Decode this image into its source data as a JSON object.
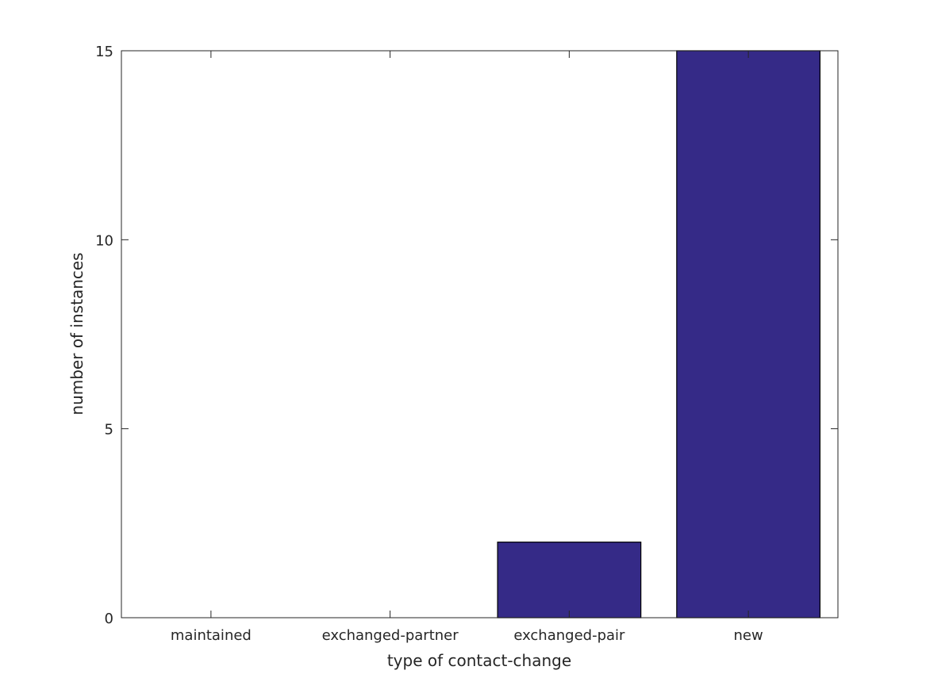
{
  "chart_data": {
    "type": "bar",
    "categories": [
      "maintained",
      "exchanged-partner",
      "exchanged-pair",
      "new"
    ],
    "values": [
      0,
      0,
      2,
      15
    ],
    "title": "",
    "xlabel": "type of contact-change",
    "ylabel": "number of instances",
    "ylim": [
      0,
      15
    ],
    "yticks": [
      0,
      5,
      10,
      15
    ],
    "grid": false,
    "bar_color": "#352a87"
  }
}
